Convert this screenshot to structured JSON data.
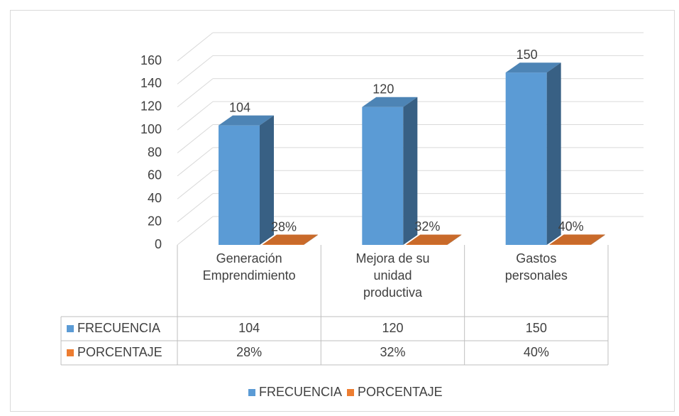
{
  "chart_data": {
    "type": "bar3d",
    "categories": [
      "Generación Emprendimiento",
      "Mejora de su unidad productiva",
      "Gastos personales"
    ],
    "series": [
      {
        "name": "FRECUENCIA",
        "color": "#5b9bd5",
        "values": [
          104,
          120,
          150
        ]
      },
      {
        "name": "PORCENTAJE",
        "color": "#ed7d31",
        "values": [
          0.28,
          0.32,
          0.4
        ],
        "value_labels": [
          "28%",
          "32%",
          "40%"
        ]
      }
    ],
    "ylim": [
      0,
      160
    ],
    "yticks": [
      0,
      20,
      40,
      60,
      80,
      100,
      120,
      140,
      160
    ],
    "grid": true,
    "legend": "bottom"
  }
}
